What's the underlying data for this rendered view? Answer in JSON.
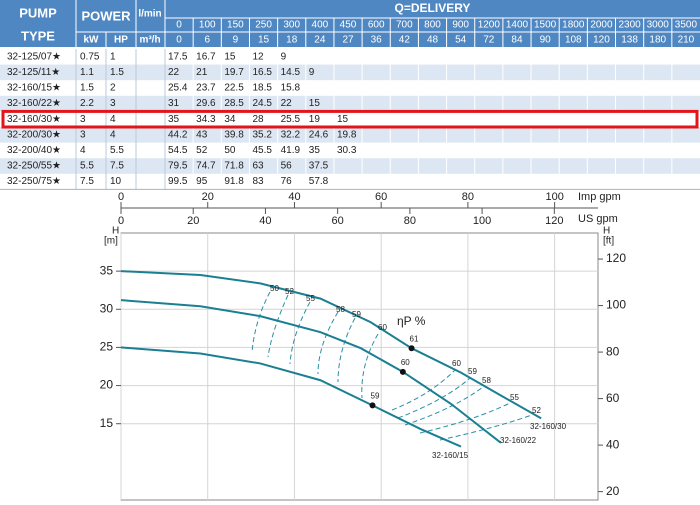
{
  "table": {
    "type_header": [
      "PUMP",
      "TYPE"
    ],
    "power_header": "POWER",
    "kw_header": "kW",
    "hp_header": "HP",
    "lmin_header": "l/min",
    "m3h_header": "m³/h",
    "delivery_header": "Q=DELIVERY",
    "l_min": [
      0,
      100,
      150,
      250,
      300,
      400,
      450,
      600,
      700,
      800,
      900,
      1200,
      1400,
      1500,
      1800,
      2000,
      2300,
      3000,
      3500
    ],
    "m3_h": [
      0,
      6,
      9,
      15,
      18,
      24,
      27,
      36,
      42,
      48,
      54,
      72,
      84,
      90,
      108,
      120,
      138,
      180,
      210
    ],
    "rows": [
      {
        "type": "32-125/07★",
        "kw": 0.75,
        "hp": 1,
        "head": [
          17.5,
          16.7,
          15,
          12,
          9
        ]
      },
      {
        "type": "32-125/11★",
        "kw": 1.1,
        "hp": 1.5,
        "head": [
          22,
          21,
          19.7,
          16.5,
          14.5,
          9
        ]
      },
      {
        "type": "32-160/15★",
        "kw": 1.5,
        "hp": 2,
        "head": [
          25.4,
          23.7,
          22.5,
          18.5,
          15.8
        ]
      },
      {
        "type": "32-160/22★",
        "kw": 2.2,
        "hp": 3,
        "head": [
          31,
          29.6,
          28.5,
          24.5,
          22,
          15
        ]
      },
      {
        "type": "32-160/30★",
        "kw": 3,
        "hp": 4,
        "head": [
          35,
          34.3,
          34,
          28,
          25.5,
          19,
          15
        ]
      },
      {
        "type": "32-200/30★",
        "kw": 3,
        "hp": 4,
        "head": [
          44.2,
          43,
          39.8,
          35.2,
          32.2,
          24.6,
          19.8
        ]
      },
      {
        "type": "32-200/40★",
        "kw": 4,
        "hp": 5.5,
        "head": [
          54.5,
          52,
          50,
          45.5,
          41.9,
          35,
          30.3
        ]
      },
      {
        "type": "32-250/55★",
        "kw": 5.5,
        "hp": 7.5,
        "head": [
          79.5,
          74.7,
          71.8,
          63,
          56,
          37.5
        ]
      },
      {
        "type": "32-250/75★",
        "kw": 7.5,
        "hp": 10,
        "head": [
          99.5,
          95,
          91.8,
          83,
          76,
          57.8
        ]
      }
    ]
  },
  "chart_data": {
    "type": "line",
    "y_symbol": "H",
    "y_unit": "[m]",
    "y2_symbol": "H",
    "y2_unit": "[ft]",
    "xlabel": "Imp gpm",
    "x2label": "US gpm",
    "xlim": [
      0,
      110
    ],
    "xticks": [
      0,
      20,
      40,
      60,
      80,
      100
    ],
    "x2lim": [
      0,
      132.1
    ],
    "x2ticks": [
      0,
      20,
      40,
      60,
      80,
      100,
      120
    ],
    "ylim": [
      5,
      40
    ],
    "yticks": [
      15,
      20,
      25,
      30,
      35
    ],
    "y2lim": [
      16.4,
      131.2
    ],
    "y2ticks": [
      20,
      40,
      60,
      80,
      100,
      120
    ],
    "grid": true,
    "efficiency_title": "ηP %",
    "efficiency_labels": [
      50,
      52,
      55,
      58,
      59,
      60,
      60,
      59,
      58,
      55,
      52
    ],
    "series": [
      {
        "name": "32-160/30",
        "color": "#1b7f93",
        "x": [
          0,
          18.3,
          32.1,
          46,
          57.6,
          67,
          78.4,
          87.6,
          96.9
        ],
        "values": [
          35,
          34.5,
          33.4,
          31.4,
          28.3,
          24.9,
          21.7,
          18.7,
          15.7
        ],
        "bep": {
          "x": 67,
          "y": 24.9,
          "efficiency": 61
        }
      },
      {
        "name": "32-160/22",
        "color": "#1b7f93",
        "x": [
          0,
          18.3,
          32.1,
          46,
          55.3,
          65,
          76.1,
          87.6
        ],
        "values": [
          31.2,
          30.4,
          29.1,
          27,
          24.9,
          21.8,
          17.6,
          12.5
        ],
        "bep": {
          "x": 65,
          "y": 21.8,
          "efficiency": 60
        }
      },
      {
        "name": "32-160/15",
        "color": "#1b7f93",
        "x": [
          0,
          18.3,
          32.1,
          46,
          58,
          69.1,
          78.4
        ],
        "values": [
          25,
          24.2,
          22.9,
          20.7,
          17.4,
          14.3,
          12
        ],
        "bep": {
          "x": 58,
          "y": 17.4,
          "efficiency": 59
        }
      }
    ]
  }
}
